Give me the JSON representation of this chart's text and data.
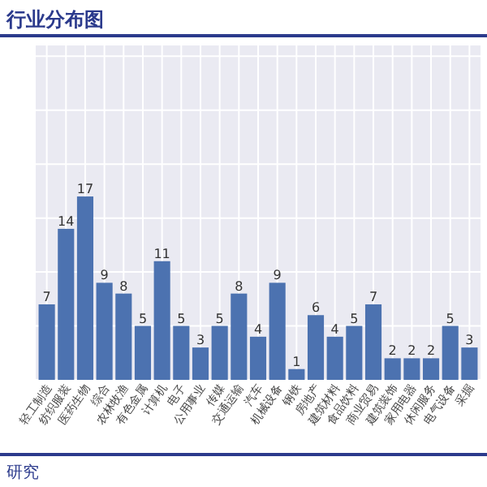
{
  "chart_data": {
    "type": "bar",
    "title": "行业分布图",
    "categories": [
      "轻工制造",
      "纺织服装",
      "医药生物",
      "综合",
      "农林牧渔",
      "有色金属",
      "计算机",
      "电子",
      "公用事业",
      "传媒",
      "交通运输",
      "汽车",
      "机械设备",
      "钢铁",
      "房地产",
      "建筑材料",
      "食品饮料",
      "商业贸易",
      "建筑装饰",
      "家用电器",
      "休闲服务",
      "电气设备",
      "采掘"
    ],
    "values": [
      7,
      14,
      17,
      9,
      8,
      5,
      11,
      5,
      3,
      5,
      8,
      4,
      9,
      1,
      6,
      4,
      5,
      7,
      2,
      2,
      2,
      5,
      3
    ],
    "color": "#4c72b0",
    "data_labels": true,
    "grid": true,
    "tick_labels": "x",
    "ylim": [
      0,
      31
    ],
    "yticks": [
      {
        "value": 0,
        "label": null
      },
      {
        "value": 5,
        "label": null
      },
      {
        "value": 10,
        "label": null
      },
      {
        "value": 15,
        "label": null
      },
      {
        "value": 20,
        "label": null
      },
      {
        "value": 25,
        "label": null
      },
      {
        "value": 30,
        "label": null
      }
    ],
    "annotations": [
      "研究"
    ]
  }
}
